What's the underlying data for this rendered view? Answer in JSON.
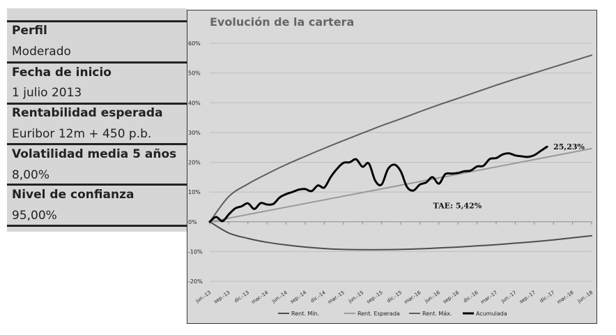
{
  "info_panel": {
    "items": [
      {
        "label": "Perfil",
        "value": "Moderado"
      },
      {
        "label": "Fecha de inicio",
        "value": "1 julio 2013"
      },
      {
        "label": "Rentabilidad esperada",
        "value": "Euribor 12m + 450 p.b."
      },
      {
        "label": "Volatilidad media 5 años",
        "value": "8,00%"
      },
      {
        "label": "Nivel de confianza",
        "value": "95,00%"
      }
    ]
  },
  "chart_data": {
    "type": "line",
    "title": "Evolución de la cartera",
    "x_ticks": [
      "jun.-13",
      "sep.-13",
      "dic.-13",
      "mar.-14",
      "jun.-14",
      "sep.-14",
      "dic.-14",
      "mar.-15",
      "jun.-15",
      "sep.-15",
      "dic.-15",
      "mar.-16",
      "jun.-16",
      "sep.-16",
      "dic.-16",
      "mar.-17",
      "jun.-17",
      "sep.-17",
      "dic.-17",
      "mar.-18",
      "jun.-18"
    ],
    "y_ticks": [
      "-20%",
      "-10%",
      "0%",
      "10%",
      "20%",
      "30%",
      "40%",
      "50%",
      "60%"
    ],
    "ylim": [
      -20,
      60
    ],
    "grid": true,
    "legend_position": "bottom",
    "series": [
      {
        "name": "Rent. Mín.",
        "color": "#4d4d4d",
        "x": [
          "jun.-13",
          "sep.-13",
          "dic.-13",
          "mar.-14",
          "jun.-14",
          "sep.-14",
          "dic.-14",
          "mar.-15",
          "jun.-15",
          "sep.-15",
          "dic.-15",
          "mar.-16",
          "jun.-16",
          "sep.-16",
          "dic.-16",
          "mar.-17",
          "jun.-17",
          "sep.-17",
          "dic.-17",
          "mar.-18",
          "jun.-18"
        ],
        "values": [
          0,
          -3.8,
          -5.6,
          -6.9,
          -7.8,
          -8.5,
          -9.0,
          -9.3,
          -9.4,
          -9.4,
          -9.3,
          -9.1,
          -8.8,
          -8.5,
          -8.1,
          -7.7,
          -7.2,
          -6.7,
          -6.1,
          -5.4,
          -4.7
        ]
      },
      {
        "name": "Rent. Esperada",
        "color": "#9a9a9a",
        "x": [
          "jun.-13",
          "jun.-18"
        ],
        "values": [
          0,
          24.6
        ]
      },
      {
        "name": "Rent. Máx.",
        "color": "#5e5e5e",
        "x": [
          "jun.-13",
          "sep.-13",
          "dic.-13",
          "mar.-14",
          "jun.-14",
          "sep.-14",
          "dic.-14",
          "mar.-15",
          "jun.-15",
          "sep.-15",
          "dic.-15",
          "mar.-16",
          "jun.-16",
          "sep.-16",
          "dic.-16",
          "mar.-17",
          "jun.-17",
          "sep.-17",
          "dic.-17",
          "mar.-18",
          "jun.-18"
        ],
        "values": [
          0,
          8.5,
          12.7,
          16.1,
          19.2,
          22.0,
          24.7,
          27.3,
          29.8,
          32.3,
          34.6,
          37.0,
          39.3,
          41.5,
          43.7,
          45.9,
          48.0,
          50.0,
          52.0,
          54.0,
          56.0
        ]
      },
      {
        "name": "Acumulada",
        "color": "#000000",
        "x": [
          "jun.-13",
          "jul.-13",
          "ago.-13",
          "sep.-13",
          "oct.-13",
          "nov.-13",
          "dic.-13",
          "ene.-14",
          "feb.-14",
          "mar.-14",
          "abr.-14",
          "may.-14",
          "jun.-14",
          "jul.-14",
          "ago.-14",
          "sep.-14",
          "oct.-14",
          "nov.-14",
          "dic.-14",
          "ene.-15",
          "feb.-15",
          "mar.-15",
          "abr.-15",
          "may.-15",
          "jun.-15",
          "jul.-15",
          "ago.-15",
          "sep.-15",
          "oct.-15",
          "nov.-15",
          "dic.-15",
          "ene.-16",
          "feb.-16",
          "mar.-16",
          "abr.-16",
          "may.-16",
          "jun.-16",
          "jul.-16",
          "ago.-16",
          "sep.-16",
          "oct.-16",
          "nov.-16",
          "dic.-16",
          "ene.-17",
          "feb.-17",
          "mar.-17",
          "abr.-17",
          "may.-17",
          "jun.-17",
          "jul.-17",
          "ago.-17",
          "sep.-17",
          "oct.-17",
          "nov.-17"
        ],
        "values": [
          0,
          1.6,
          0.2,
          2.5,
          4.5,
          5.2,
          6.2,
          4.3,
          6.3,
          5.8,
          6.0,
          8.2,
          9.3,
          10.0,
          10.8,
          11.0,
          10.3,
          12.2,
          11.5,
          15.0,
          17.8,
          19.8,
          20.0,
          21.0,
          18.5,
          19.6,
          13.8,
          12.5,
          17.7,
          19.2,
          17.0,
          11.7,
          10.5,
          12.5,
          13.2,
          15.0,
          12.8,
          16.0,
          16.2,
          16.4,
          17.0,
          17.2,
          18.6,
          18.8,
          21.1,
          21.4,
          22.6,
          23.0,
          22.3,
          22.0,
          21.8,
          22.4,
          23.8,
          25.23
        ]
      }
    ],
    "annotations": [
      {
        "text": "25,23%",
        "x": "nov.-17",
        "y": 25.23
      },
      {
        "text": "TAE: 5,42%",
        "x": "abr.-16",
        "y": 5.42
      }
    ]
  }
}
